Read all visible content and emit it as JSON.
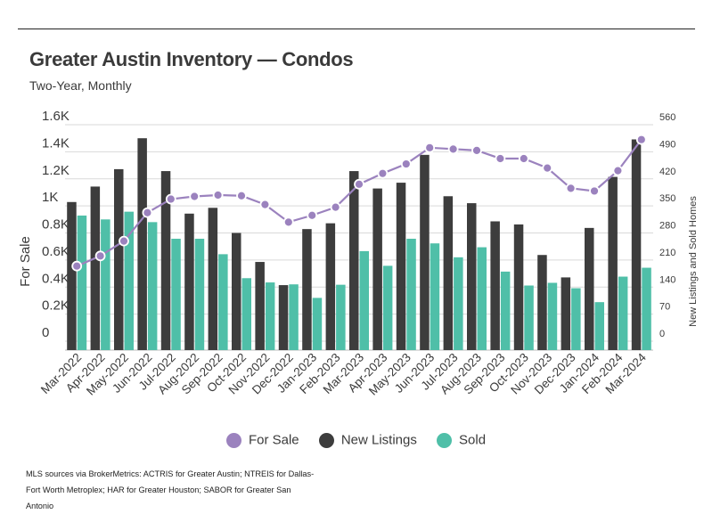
{
  "chart_data": {
    "type": "bar",
    "title": "Greater Austin Inventory — Condos",
    "subtitle": "Two-Year, Monthly",
    "ylabel_left": "For Sale",
    "ylabel_right": "New Listings and Sold Homes",
    "left_ticks": [
      "0",
      "0.2K",
      "0.4K",
      "0.6K",
      "0.8K",
      "1K",
      "1.2K",
      "1.4K",
      "1.6K"
    ],
    "right_ticks": [
      "0",
      "70",
      "140",
      "210",
      "280",
      "350",
      "420",
      "490",
      "560"
    ],
    "ylim_left": [
      0,
      1600
    ],
    "ylim_right": [
      0,
      560
    ],
    "categories": [
      "Mar-2022",
      "Apr-2022",
      "May-2022",
      "Jun-2022",
      "Jul-2022",
      "Aug-2022",
      "Sep-2022",
      "Oct-2022",
      "Nov-2022",
      "Dec-2022",
      "Jan-2023",
      "Feb-2023",
      "Mar-2023",
      "Apr-2023",
      "May-2023",
      "Jun-2023",
      "Jul-2023",
      "Aug-2023",
      "Sep-2023",
      "Oct-2023",
      "Nov-2023",
      "Dec-2023",
      "Jan-2024",
      "Feb-2024",
      "Mar-2024"
    ],
    "series": [
      {
        "name": "For Sale",
        "type": "line",
        "axis": "left",
        "color": "#9b82be",
        "values": [
          555,
          630,
          740,
          950,
          1050,
          1070,
          1080,
          1075,
          1010,
          880,
          930,
          990,
          1160,
          1240,
          1310,
          1430,
          1420,
          1410,
          1350,
          1350,
          1280,
          1130,
          1110,
          1260,
          1490
        ]
      },
      {
        "name": "New Listings",
        "type": "bar",
        "axis": "right",
        "color": "#3d3d3d",
        "values": [
          360,
          400,
          445,
          525,
          440,
          330,
          345,
          280,
          205,
          145,
          290,
          305,
          440,
          395,
          410,
          482,
          375,
          357,
          310,
          302,
          223,
          165,
          293,
          425,
          522
        ]
      },
      {
        "name": "Sold",
        "type": "bar",
        "axis": "right",
        "color": "#4fbfa8",
        "values": [
          325,
          315,
          335,
          308,
          265,
          265,
          225,
          163,
          152,
          147,
          112,
          146,
          233,
          195,
          265,
          253,
          217,
          243,
          180,
          144,
          151,
          137,
          101,
          167,
          190
        ]
      }
    ],
    "grid": true,
    "legend_position": "bottom"
  },
  "source_note": "MLS sources via BrokerMetrics: ACTRIS for Greater Austin; NTREIS for Dallas-Fort Worth Metroplex; HAR for Greater Houston; SABOR for Greater San Antonio"
}
